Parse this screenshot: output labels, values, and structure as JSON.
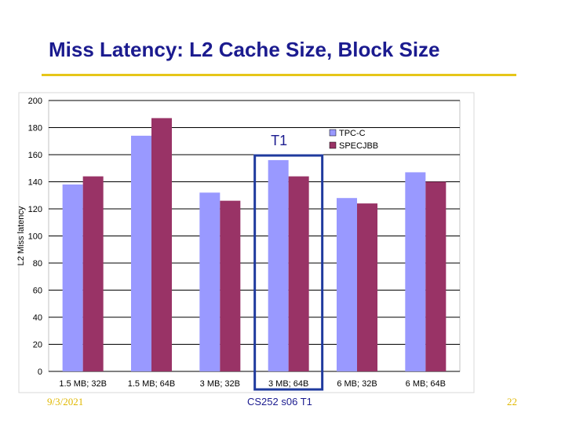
{
  "slide": {
    "title": "Miss Latency: L2 Cache Size, Block Size",
    "date": "9/3/2021",
    "footer": "CS252 s06 T1",
    "page": "22"
  },
  "colors": {
    "accent_rule": "#e6c619",
    "title": "#1b1b8f",
    "tpcc": "#9999ff",
    "specjbb": "#993366",
    "highlight": "#1f3a9e"
  },
  "chart_data": {
    "type": "bar",
    "title": "",
    "xlabel": "",
    "ylabel": "L2 Miss latency",
    "ylim": [
      0,
      200
    ],
    "yticks": [
      0,
      20,
      40,
      60,
      80,
      100,
      120,
      140,
      160,
      180,
      200
    ],
    "grid": "horizontal",
    "categories": [
      "1.5 MB; 32B",
      "1.5 MB; 64B",
      "3 MB; 32B",
      "3 MB; 64B",
      "6 MB; 32B",
      "6 MB; 64B"
    ],
    "series": [
      {
        "name": "TPC-C",
        "values": [
          138,
          174,
          132,
          156,
          128,
          147
        ]
      },
      {
        "name": "SPECJBB",
        "values": [
          144,
          187,
          126,
          144,
          124,
          140
        ]
      }
    ],
    "legend": "top-right",
    "annotation": {
      "text": "T1",
      "category": "3 MB; 64B"
    }
  }
}
